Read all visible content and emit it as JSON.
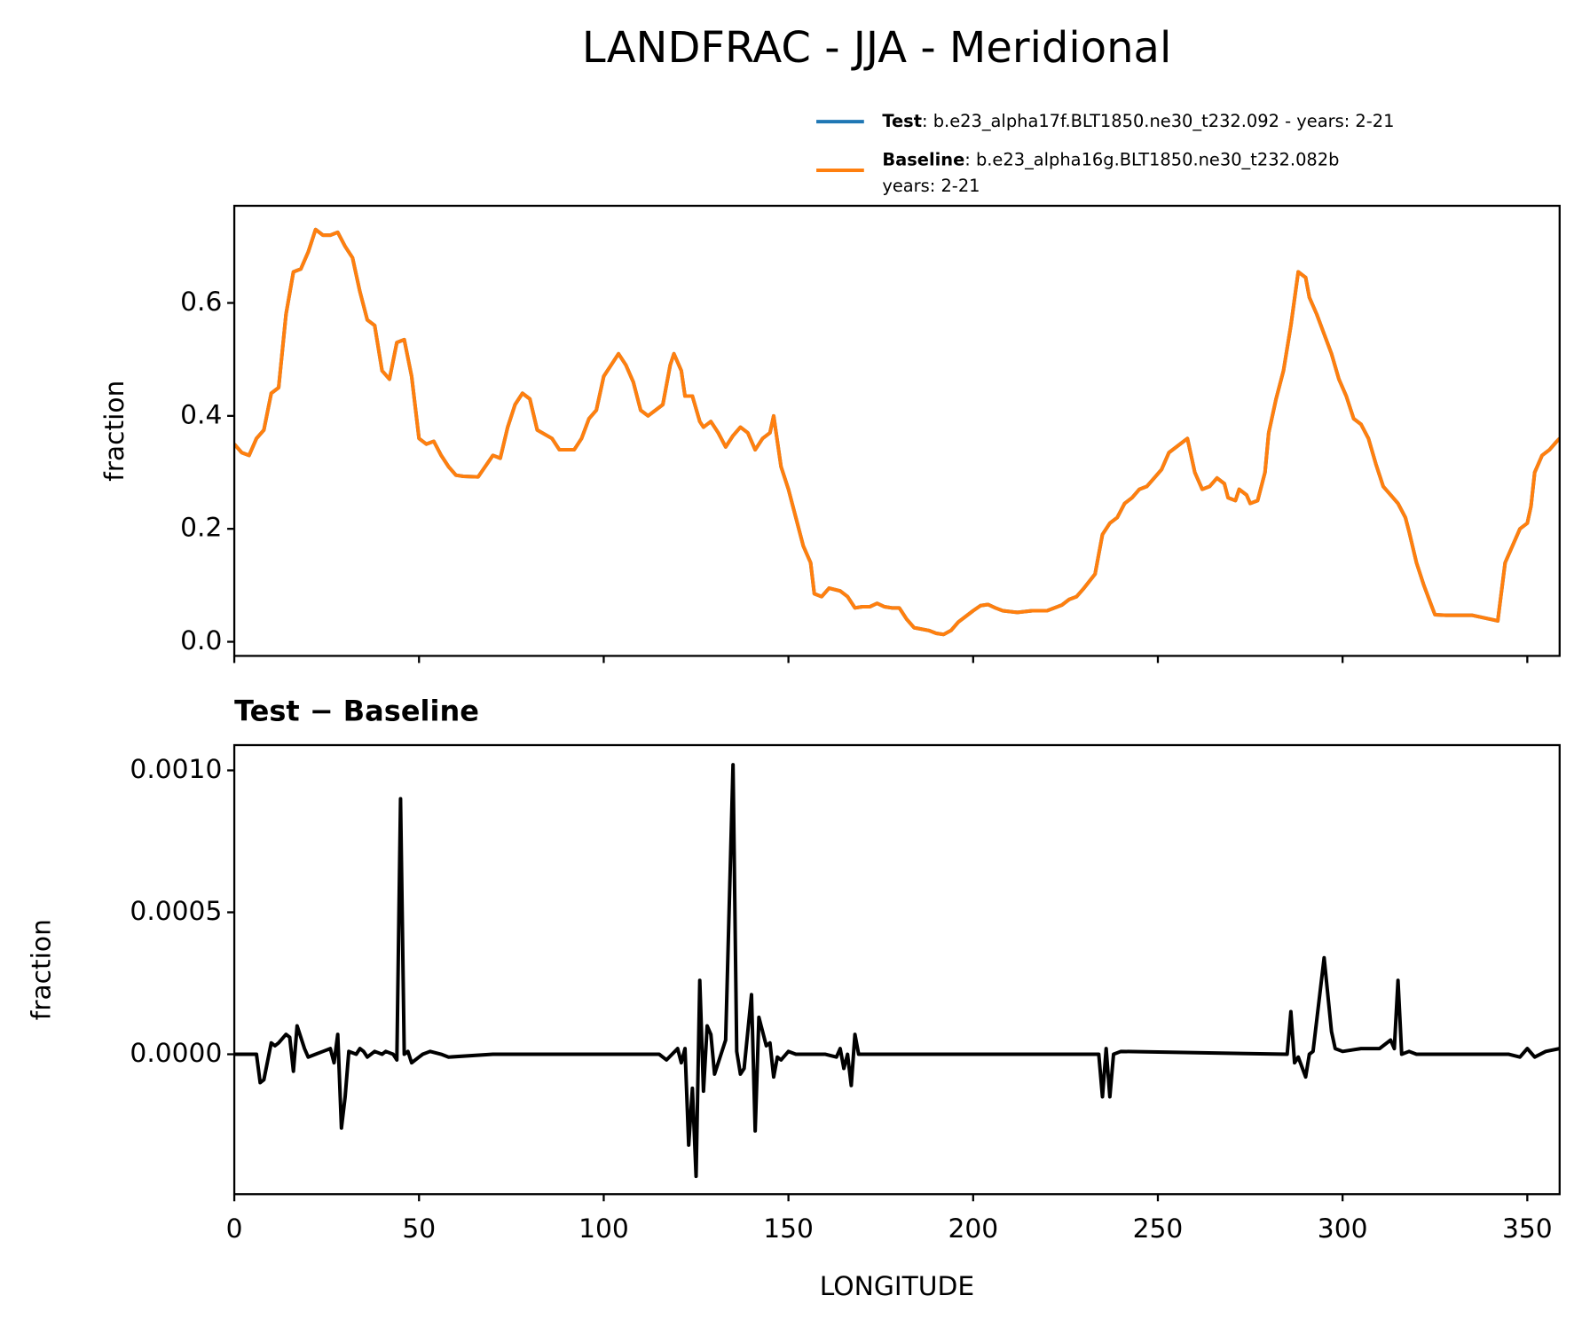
{
  "chart_data": [
    {
      "type": "line",
      "title": "LANDFRAC - JJA - Meridional",
      "ylabel": "fraction",
      "xlim": [
        0,
        358.75
      ],
      "xticks": [
        0,
        50,
        100,
        150,
        200,
        250,
        300,
        350
      ],
      "ylim": [
        -0.025,
        0.772
      ],
      "yticks": [
        {
          "value": 0,
          "label": "0.0"
        },
        0.2,
        0.4,
        0.6
      ],
      "legend": "upper right",
      "x": [
        0,
        2,
        4,
        6,
        8,
        10,
        12,
        14,
        16,
        18,
        20,
        22,
        24,
        26,
        28,
        30,
        32,
        34,
        36,
        38,
        40,
        42,
        44,
        46,
        48,
        50,
        52,
        54,
        56,
        58,
        60,
        62,
        66,
        70,
        72,
        74,
        76,
        78,
        80,
        82,
        86,
        88,
        92,
        94,
        96,
        98,
        100,
        102,
        104,
        106,
        108,
        110,
        112,
        114,
        116,
        118,
        119,
        121,
        122,
        124,
        126,
        127,
        129,
        131,
        133,
        135,
        137,
        139,
        141,
        143,
        145,
        146,
        148,
        150,
        152,
        154,
        156,
        157,
        159,
        161,
        164,
        166,
        168,
        170,
        172,
        174,
        176,
        178,
        180,
        182,
        184,
        188,
        190,
        192,
        194,
        196,
        198,
        200,
        202,
        204,
        206,
        208,
        212,
        216,
        220,
        224,
        226,
        228,
        230,
        233,
        235,
        237,
        239,
        241,
        243,
        245,
        247,
        249,
        251,
        253,
        255,
        257,
        258,
        260,
        262,
        264,
        266,
        268,
        269,
        271,
        272,
        274,
        275,
        277,
        279,
        280,
        282,
        284,
        286,
        288,
        290,
        291,
        293,
        295,
        297,
        299,
        301,
        303,
        305,
        307,
        309,
        311,
        313,
        315,
        317,
        318,
        320,
        322,
        324,
        325,
        328,
        335,
        340,
        342,
        344,
        346,
        348,
        350,
        351,
        352,
        354,
        356,
        358,
        358.75
      ],
      "series": [
        {
          "name": "Test",
          "description": [
            ": b.e23_alpha17f.BLT1850.ne30_t232.092 - years: 2-21"
          ],
          "color": "#1f77b4",
          "values": [
            0.35,
            0.335,
            0.33,
            0.36,
            0.375,
            0.44,
            0.45,
            0.58,
            0.655,
            0.66,
            0.69,
            0.73,
            0.72,
            0.72,
            0.725,
            0.7,
            0.68,
            0.62,
            0.57,
            0.56,
            0.48,
            0.465,
            0.53,
            0.535,
            0.47,
            0.36,
            0.35,
            0.355,
            0.33,
            0.31,
            0.295,
            0.293,
            0.292,
            0.33,
            0.325,
            0.38,
            0.42,
            0.44,
            0.43,
            0.375,
            0.36,
            0.34,
            0.34,
            0.36,
            0.395,
            0.41,
            0.47,
            0.49,
            0.51,
            0.49,
            0.46,
            0.41,
            0.4,
            0.41,
            0.42,
            0.49,
            0.51,
            0.48,
            0.435,
            0.435,
            0.39,
            0.38,
            0.39,
            0.37,
            0.345,
            0.365,
            0.38,
            0.37,
            0.34,
            0.36,
            0.37,
            0.4,
            0.31,
            0.27,
            0.22,
            0.17,
            0.14,
            0.085,
            0.08,
            0.095,
            0.09,
            0.08,
            0.06,
            0.062,
            0.062,
            0.068,
            0.062,
            0.06,
            0.06,
            0.04,
            0.025,
            0.02,
            0.015,
            0.013,
            0.02,
            0.035,
            0.045,
            0.055,
            0.064,
            0.066,
            0.06,
            0.055,
            0.052,
            0.055,
            0.055,
            0.065,
            0.075,
            0.08,
            0.095,
            0.12,
            0.19,
            0.21,
            0.22,
            0.245,
            0.255,
            0.27,
            0.275,
            0.29,
            0.305,
            0.335,
            0.345,
            0.355,
            0.36,
            0.3,
            0.27,
            0.275,
            0.29,
            0.28,
            0.255,
            0.25,
            0.27,
            0.26,
            0.245,
            0.25,
            0.3,
            0.37,
            0.43,
            0.48,
            0.56,
            0.655,
            0.645,
            0.61,
            0.58,
            0.545,
            0.51,
            0.465,
            0.435,
            0.395,
            0.385,
            0.36,
            0.315,
            0.275,
            0.26,
            0.245,
            0.22,
            0.195,
            0.14,
            0.1,
            0.065,
            0.048,
            0.047,
            0.047,
            0.04,
            0.037,
            0.14,
            0.17,
            0.2,
            0.21,
            0.24,
            0.3,
            0.33,
            0.34,
            0.355,
            0.36
          ]
        },
        {
          "name": "Baseline",
          "description": [
            ": b.e23_alpha16g.BLT1850.ne30_t232.082b",
            "years: 2-21"
          ],
          "color": "#ff7f0e",
          "values": [
            0.35,
            0.335,
            0.33,
            0.36,
            0.375,
            0.44,
            0.45,
            0.58,
            0.655,
            0.66,
            0.69,
            0.73,
            0.72,
            0.72,
            0.725,
            0.7,
            0.68,
            0.62,
            0.57,
            0.56,
            0.48,
            0.465,
            0.53,
            0.535,
            0.47,
            0.36,
            0.35,
            0.355,
            0.33,
            0.31,
            0.295,
            0.293,
            0.292,
            0.33,
            0.325,
            0.38,
            0.42,
            0.44,
            0.43,
            0.375,
            0.36,
            0.34,
            0.34,
            0.36,
            0.395,
            0.41,
            0.47,
            0.49,
            0.51,
            0.49,
            0.46,
            0.41,
            0.4,
            0.41,
            0.42,
            0.49,
            0.51,
            0.48,
            0.435,
            0.435,
            0.39,
            0.38,
            0.39,
            0.37,
            0.345,
            0.365,
            0.38,
            0.37,
            0.34,
            0.36,
            0.37,
            0.4,
            0.31,
            0.27,
            0.22,
            0.17,
            0.14,
            0.085,
            0.08,
            0.095,
            0.09,
            0.08,
            0.06,
            0.062,
            0.062,
            0.068,
            0.062,
            0.06,
            0.06,
            0.04,
            0.025,
            0.02,
            0.015,
            0.013,
            0.02,
            0.035,
            0.045,
            0.055,
            0.064,
            0.066,
            0.06,
            0.055,
            0.052,
            0.055,
            0.055,
            0.065,
            0.075,
            0.08,
            0.095,
            0.12,
            0.19,
            0.21,
            0.22,
            0.245,
            0.255,
            0.27,
            0.275,
            0.29,
            0.305,
            0.335,
            0.345,
            0.355,
            0.36,
            0.3,
            0.27,
            0.275,
            0.29,
            0.28,
            0.255,
            0.25,
            0.27,
            0.26,
            0.245,
            0.25,
            0.3,
            0.37,
            0.43,
            0.48,
            0.56,
            0.655,
            0.645,
            0.61,
            0.58,
            0.545,
            0.51,
            0.465,
            0.435,
            0.395,
            0.385,
            0.36,
            0.315,
            0.275,
            0.26,
            0.245,
            0.22,
            0.195,
            0.14,
            0.1,
            0.065,
            0.048,
            0.047,
            0.047,
            0.04,
            0.037,
            0.14,
            0.17,
            0.2,
            0.21,
            0.24,
            0.3,
            0.33,
            0.34,
            0.355,
            0.36
          ]
        }
      ]
    },
    {
      "type": "line",
      "title": "Test − Baseline",
      "ylabel": "fraction",
      "xlabel": "LONGITUDE",
      "xlim": [
        0,
        358.75
      ],
      "xticks": [
        0,
        50,
        100,
        150,
        200,
        250,
        300,
        350
      ],
      "ylim": [
        -0.000493,
        0.001089
      ],
      "yticks": [
        {
          "value": 0,
          "label": "0.0000"
        },
        {
          "value": 0.0005,
          "label": "0.0005"
        },
        {
          "value": 0.001,
          "label": "0.0010"
        }
      ],
      "x": [
        0,
        6,
        7,
        8,
        10,
        11,
        12,
        14,
        15,
        16,
        17,
        19,
        20,
        22,
        24,
        26,
        27,
        28,
        29,
        30,
        31,
        33,
        34,
        35,
        36,
        38,
        40,
        41,
        43,
        44,
        45,
        46,
        47,
        48,
        50,
        51,
        53,
        56,
        58,
        70,
        110,
        115,
        117,
        120,
        121,
        122,
        123,
        124,
        125,
        126,
        127,
        128,
        129,
        130,
        132,
        133,
        135,
        136,
        137,
        138,
        140,
        141,
        142,
        144,
        145,
        146,
        147,
        148,
        150,
        152,
        160,
        163,
        164,
        165,
        166,
        167,
        168,
        169,
        172,
        200,
        234,
        235,
        236,
        237,
        238,
        240,
        285,
        286,
        287,
        288,
        290,
        291,
        292,
        295,
        297,
        298,
        300,
        305,
        310,
        313,
        314,
        315,
        316,
        318,
        320,
        345,
        348,
        350,
        352,
        355,
        358.75
      ],
      "series": [
        {
          "color": "#000000",
          "values": [
            0,
            0,
            -0.0001,
            -9e-05,
            4e-05,
            3e-05,
            4e-05,
            7e-05,
            6e-05,
            -6e-05,
            0.0001,
            2e-05,
            -1e-05,
            0,
            1e-05,
            2e-05,
            -3e-05,
            7e-05,
            -0.00026,
            -0.00015,
            1e-05,
            0,
            2e-05,
            1e-05,
            -1e-05,
            1e-05,
            0,
            1e-05,
            0,
            -2e-05,
            0.0009,
            0,
            1e-05,
            -3e-05,
            -1e-05,
            0,
            1e-05,
            0,
            -1e-05,
            0,
            0,
            0,
            -2e-05,
            2e-05,
            -3e-05,
            2e-05,
            -0.00032,
            -0.00012,
            -0.00043,
            0.00026,
            -0.00013,
            0.0001,
            7e-05,
            -7e-05,
            1e-05,
            5e-05,
            0.00102,
            1e-05,
            -7e-05,
            -5e-05,
            0.00021,
            -0.00027,
            0.00013,
            3e-05,
            4e-05,
            -8e-05,
            -1e-05,
            -2e-05,
            1e-05,
            0,
            0,
            -1e-05,
            2e-05,
            -5e-05,
            0,
            -0.00011,
            7e-05,
            0,
            0,
            0,
            0,
            -0.00015,
            2e-05,
            -0.00015,
            0,
            1e-05,
            0,
            0.00015,
            -3e-05,
            -1e-05,
            -8e-05,
            0,
            1e-05,
            0.00034,
            8e-05,
            2e-05,
            1e-05,
            2e-05,
            2e-05,
            5e-05,
            2e-05,
            0.00026,
            0,
            1e-05,
            0,
            0,
            -1e-05,
            2e-05,
            -1e-05,
            1e-05,
            2e-05
          ]
        }
      ]
    }
  ]
}
